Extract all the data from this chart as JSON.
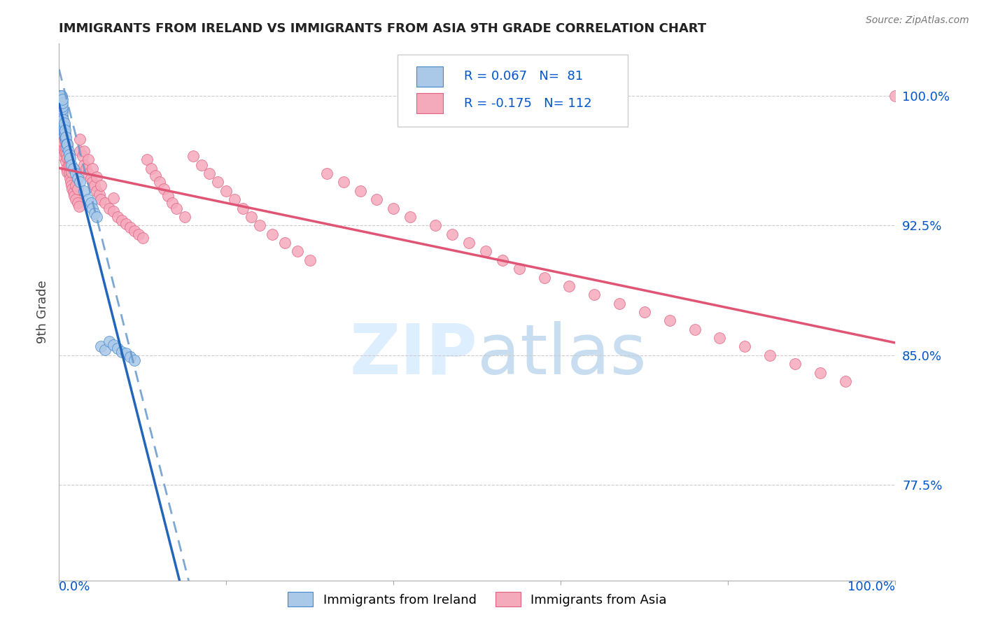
{
  "title": "IMMIGRANTS FROM IRELAND VS IMMIGRANTS FROM ASIA 9TH GRADE CORRELATION CHART",
  "source": "Source: ZipAtlas.com",
  "ylabel": "9th Grade",
  "xlim": [
    0.0,
    1.0
  ],
  "ylim": [
    0.72,
    1.03
  ],
  "yticks": [
    0.775,
    0.85,
    0.925,
    1.0
  ],
  "ytick_labels": [
    "77.5%",
    "85.0%",
    "92.5%",
    "100.0%"
  ],
  "ireland_R": 0.067,
  "ireland_N": 81,
  "asia_R": -0.175,
  "asia_N": 112,
  "ireland_color": "#aac8e8",
  "ireland_edge_color": "#4488cc",
  "ireland_line_color": "#2266bb",
  "ireland_dash_color": "#6699cc",
  "asia_color": "#f5aabb",
  "asia_edge_color": "#e06080",
  "asia_line_color": "#e05575",
  "background_color": "#ffffff",
  "title_color": "#222222",
  "axis_label_color": "#0055cc",
  "ylabel_color": "#444444",
  "legend_R_color": "#0055cc",
  "watermark_color": "#ddeeff",
  "grid_color": "#cccccc",
  "ireland_x": [
    0.001,
    0.001,
    0.001,
    0.002,
    0.002,
    0.002,
    0.002,
    0.002,
    0.002,
    0.002,
    0.002,
    0.002,
    0.002,
    0.002,
    0.002,
    0.003,
    0.003,
    0.003,
    0.003,
    0.003,
    0.003,
    0.003,
    0.003,
    0.003,
    0.003,
    0.003,
    0.003,
    0.003,
    0.003,
    0.003,
    0.003,
    0.004,
    0.004,
    0.004,
    0.004,
    0.004,
    0.004,
    0.004,
    0.004,
    0.004,
    0.004,
    0.005,
    0.005,
    0.005,
    0.005,
    0.005,
    0.006,
    0.006,
    0.006,
    0.006,
    0.007,
    0.007,
    0.007,
    0.008,
    0.008,
    0.009,
    0.01,
    0.01,
    0.011,
    0.012,
    0.013,
    0.015,
    0.017,
    0.02,
    0.022,
    0.025,
    0.03,
    0.035,
    0.038,
    0.04,
    0.042,
    0.045,
    0.05,
    0.055,
    0.06,
    0.065,
    0.07,
    0.075,
    0.08,
    0.085,
    0.09
  ],
  "ireland_y": [
    0.995,
    0.998,
    1.0,
    0.99,
    0.992,
    0.994,
    0.996,
    0.997,
    0.998,
    0.999,
    1.0,
    1.001,
    0.985,
    0.988,
    0.991,
    0.985,
    0.987,
    0.989,
    0.99,
    0.992,
    0.993,
    0.995,
    0.996,
    0.997,
    0.998,
    0.999,
    1.0,
    0.983,
    0.984,
    0.986,
    0.982,
    0.98,
    0.982,
    0.984,
    0.986,
    0.988,
    0.99,
    0.992,
    0.994,
    0.996,
    0.998,
    0.978,
    0.98,
    0.982,
    0.984,
    0.986,
    0.978,
    0.98,
    0.982,
    0.984,
    0.976,
    0.978,
    0.98,
    0.974,
    0.976,
    0.972,
    0.97,
    0.972,
    0.968,
    0.966,
    0.964,
    0.96,
    0.958,
    0.955,
    0.952,
    0.95,
    0.945,
    0.94,
    0.938,
    0.935,
    0.932,
    0.93,
    0.855,
    0.853,
    0.858,
    0.856,
    0.854,
    0.852,
    0.851,
    0.849,
    0.847
  ],
  "asia_x": [
    0.002,
    0.003,
    0.003,
    0.004,
    0.004,
    0.005,
    0.005,
    0.005,
    0.006,
    0.006,
    0.006,
    0.007,
    0.007,
    0.008,
    0.008,
    0.009,
    0.009,
    0.01,
    0.01,
    0.01,
    0.011,
    0.012,
    0.012,
    0.013,
    0.013,
    0.014,
    0.015,
    0.015,
    0.016,
    0.017,
    0.018,
    0.02,
    0.02,
    0.022,
    0.022,
    0.024,
    0.025,
    0.025,
    0.028,
    0.03,
    0.03,
    0.032,
    0.035,
    0.035,
    0.038,
    0.04,
    0.04,
    0.042,
    0.045,
    0.045,
    0.048,
    0.05,
    0.05,
    0.055,
    0.06,
    0.065,
    0.065,
    0.07,
    0.075,
    0.08,
    0.085,
    0.09,
    0.095,
    0.1,
    0.105,
    0.11,
    0.115,
    0.12,
    0.125,
    0.13,
    0.135,
    0.14,
    0.15,
    0.16,
    0.17,
    0.18,
    0.19,
    0.2,
    0.21,
    0.22,
    0.23,
    0.24,
    0.255,
    0.27,
    0.285,
    0.3,
    0.32,
    0.34,
    0.36,
    0.38,
    0.4,
    0.42,
    0.45,
    0.47,
    0.49,
    0.51,
    0.53,
    0.55,
    0.58,
    0.61,
    0.64,
    0.67,
    0.7,
    0.73,
    0.76,
    0.79,
    0.82,
    0.85,
    0.88,
    0.91,
    0.94,
    1.0
  ],
  "asia_y": [
    0.972,
    0.968,
    0.975,
    0.971,
    0.978,
    0.965,
    0.973,
    0.98,
    0.969,
    0.976,
    0.983,
    0.967,
    0.974,
    0.962,
    0.97,
    0.958,
    0.966,
    0.956,
    0.964,
    0.972,
    0.96,
    0.955,
    0.963,
    0.952,
    0.96,
    0.95,
    0.948,
    0.956,
    0.946,
    0.944,
    0.942,
    0.94,
    0.948,
    0.938,
    0.946,
    0.936,
    0.975,
    0.968,
    0.965,
    0.96,
    0.968,
    0.958,
    0.955,
    0.963,
    0.952,
    0.95,
    0.958,
    0.948,
    0.945,
    0.953,
    0.943,
    0.94,
    0.948,
    0.938,
    0.935,
    0.933,
    0.941,
    0.93,
    0.928,
    0.926,
    0.924,
    0.922,
    0.92,
    0.918,
    0.963,
    0.958,
    0.954,
    0.95,
    0.946,
    0.942,
    0.938,
    0.935,
    0.93,
    0.965,
    0.96,
    0.955,
    0.95,
    0.945,
    0.94,
    0.935,
    0.93,
    0.925,
    0.92,
    0.915,
    0.91,
    0.905,
    0.955,
    0.95,
    0.945,
    0.94,
    0.935,
    0.93,
    0.925,
    0.92,
    0.915,
    0.91,
    0.905,
    0.9,
    0.895,
    0.89,
    0.885,
    0.88,
    0.875,
    0.87,
    0.865,
    0.86,
    0.855,
    0.85,
    0.845,
    0.84,
    0.835,
    1.0
  ]
}
